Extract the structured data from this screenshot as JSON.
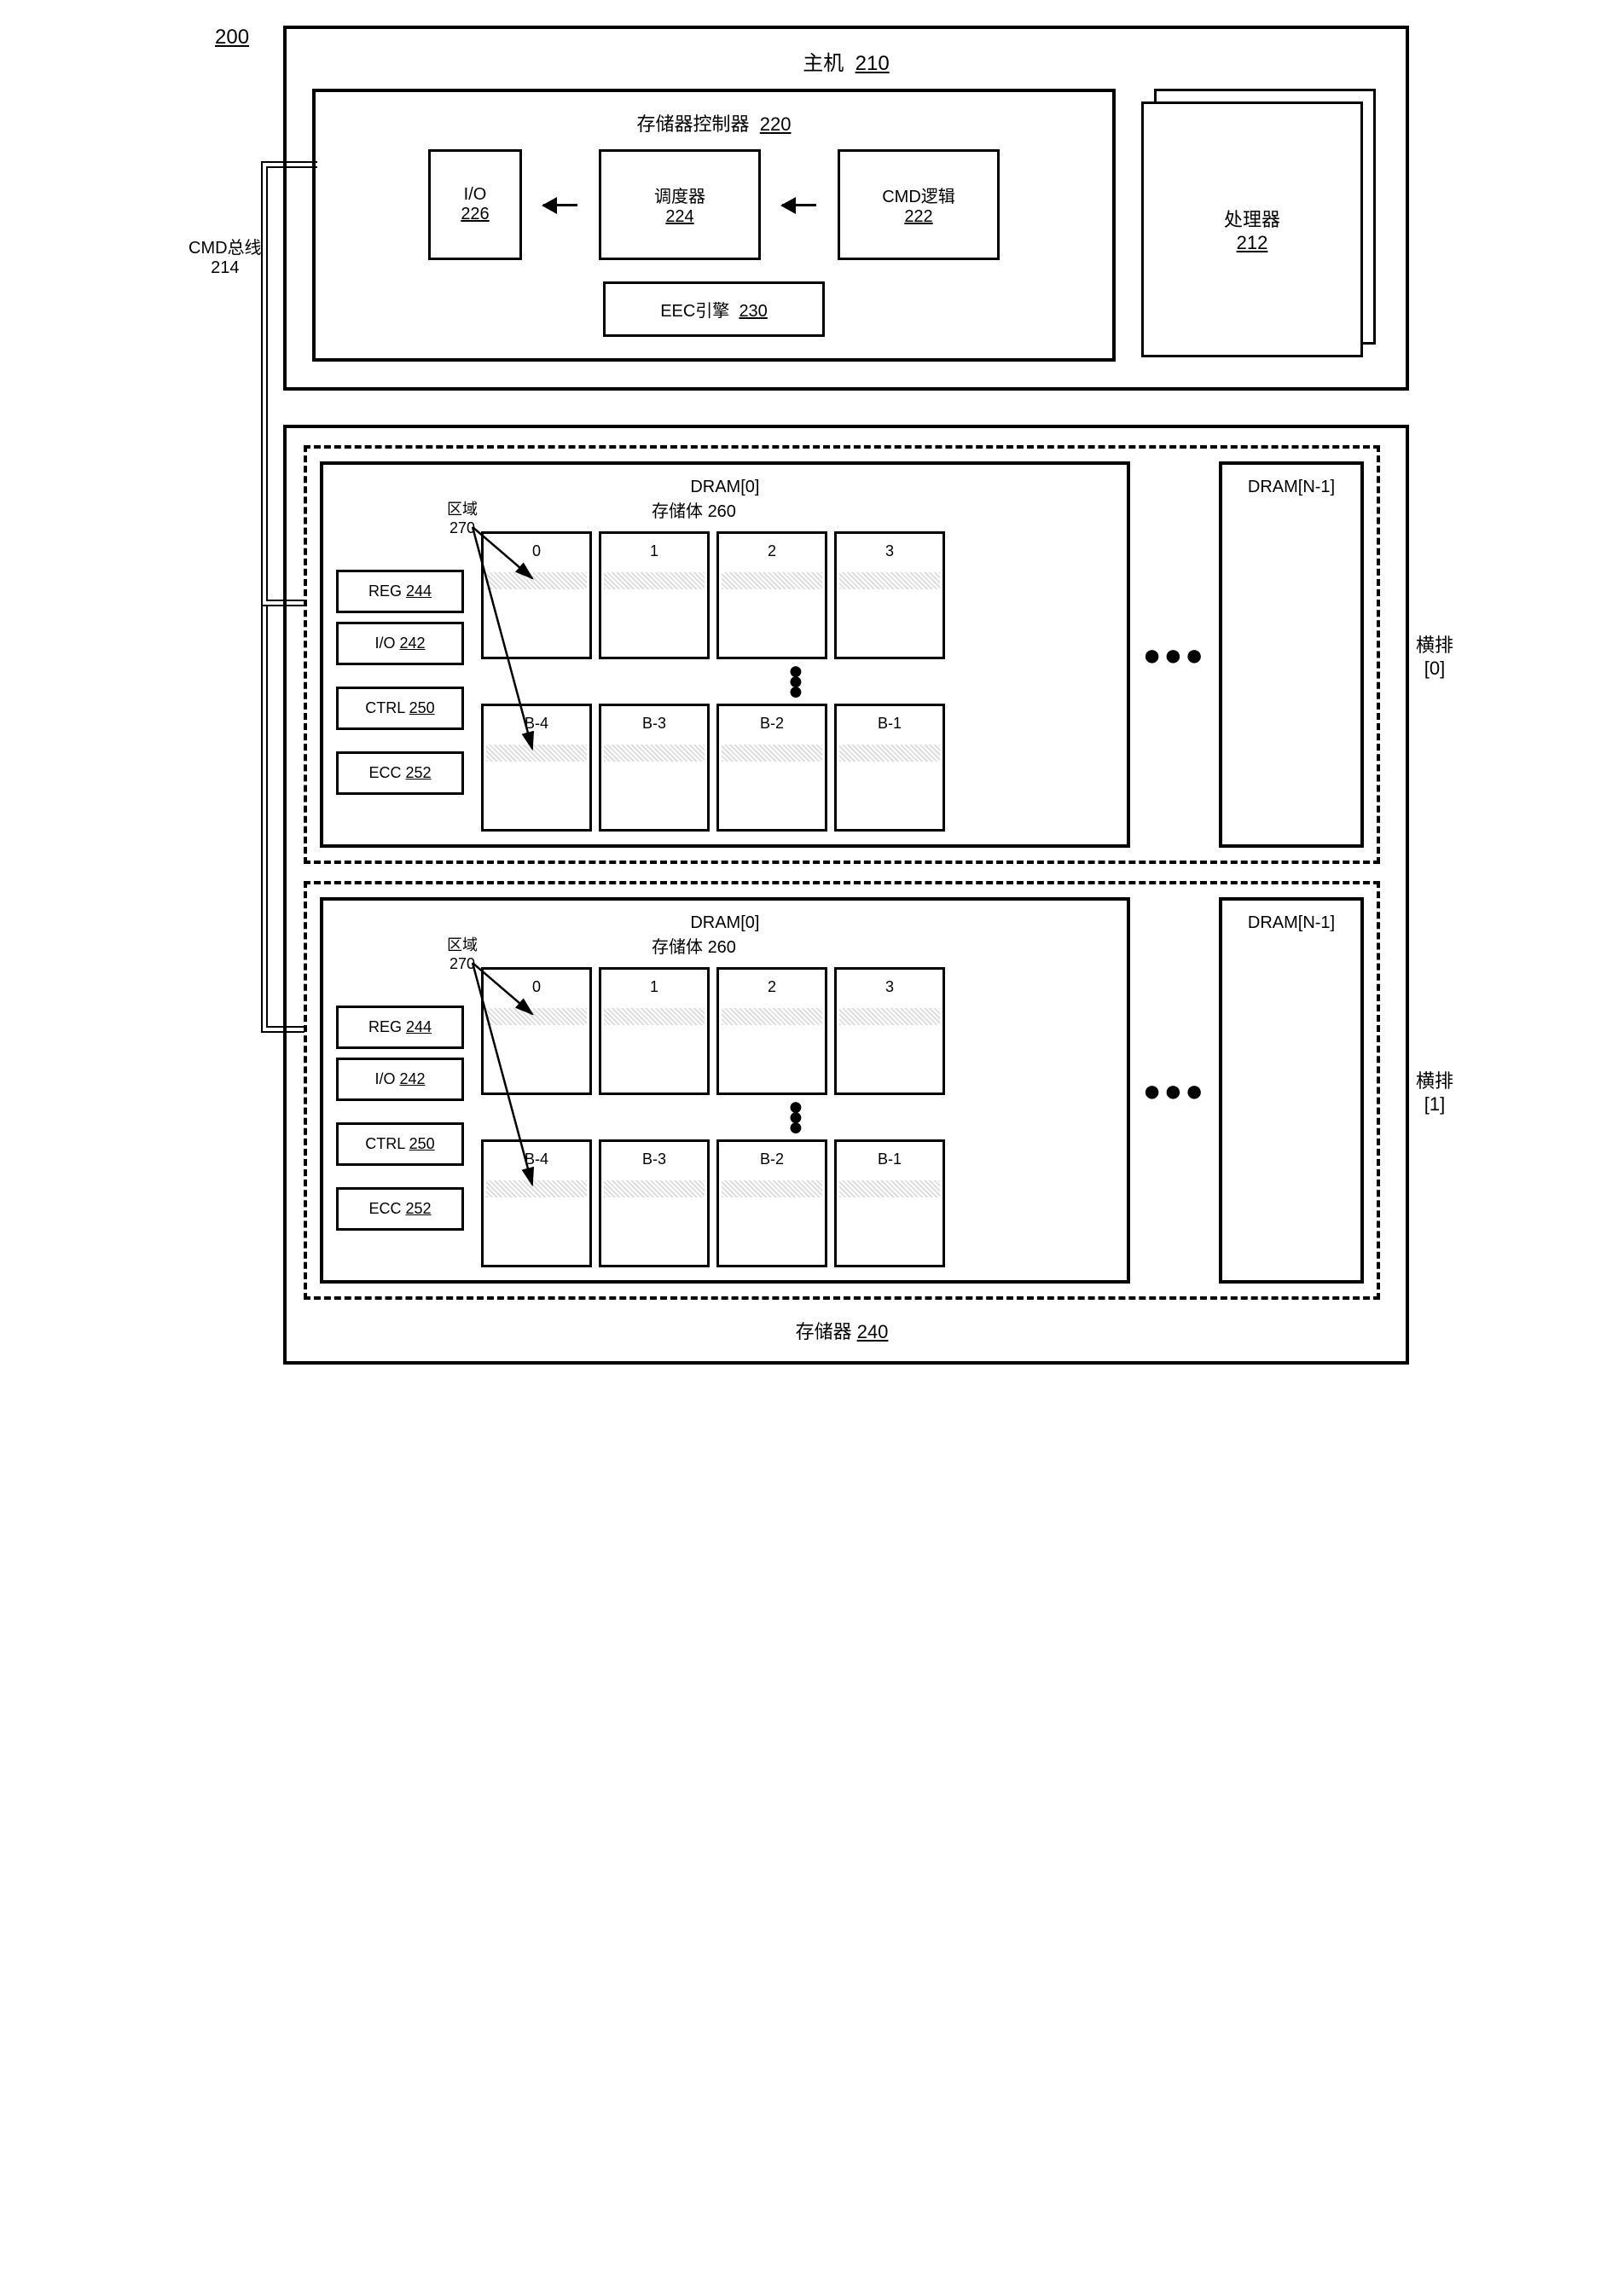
{
  "figure_ref": "200",
  "host": {
    "title": "主机",
    "ref": "210"
  },
  "mem_ctrl": {
    "title": "存储器控制器",
    "ref": "220"
  },
  "io": {
    "label": "I/O",
    "ref": "226"
  },
  "scheduler": {
    "label": "调度器",
    "ref": "224"
  },
  "cmd_logic": {
    "label": "CMD逻辑",
    "ref": "222"
  },
  "eec": {
    "label": "EEC引擎",
    "ref": "230"
  },
  "processor": {
    "label": "处理器",
    "ref": "212"
  },
  "cmd_bus": {
    "label": "CMD总线",
    "ref": "214"
  },
  "memory": {
    "label": "存储器",
    "ref": "240"
  },
  "dram0": "DRAM[0]",
  "dramN": "DRAM[N-1]",
  "region": {
    "label": "区域",
    "ref": "270"
  },
  "banks": {
    "label": "存储体",
    "ref": "260"
  },
  "reg": {
    "label": "REG",
    "ref": "244"
  },
  "io2": {
    "label": "I/O",
    "ref": "242"
  },
  "ctrl": {
    "label": "CTRL",
    "ref": "250"
  },
  "ecc": {
    "label": "ECC",
    "ref": "252"
  },
  "rank0": "横排\n[0]",
  "rank1": "横排\n[1]",
  "bank_top": [
    "0",
    "1",
    "2",
    "3"
  ],
  "bank_bot": [
    "B-4",
    "B-3",
    "B-2",
    "B-1"
  ],
  "colors": {
    "border": "#000000",
    "region_fill": "#dddddd",
    "bg": "#ffffff"
  }
}
